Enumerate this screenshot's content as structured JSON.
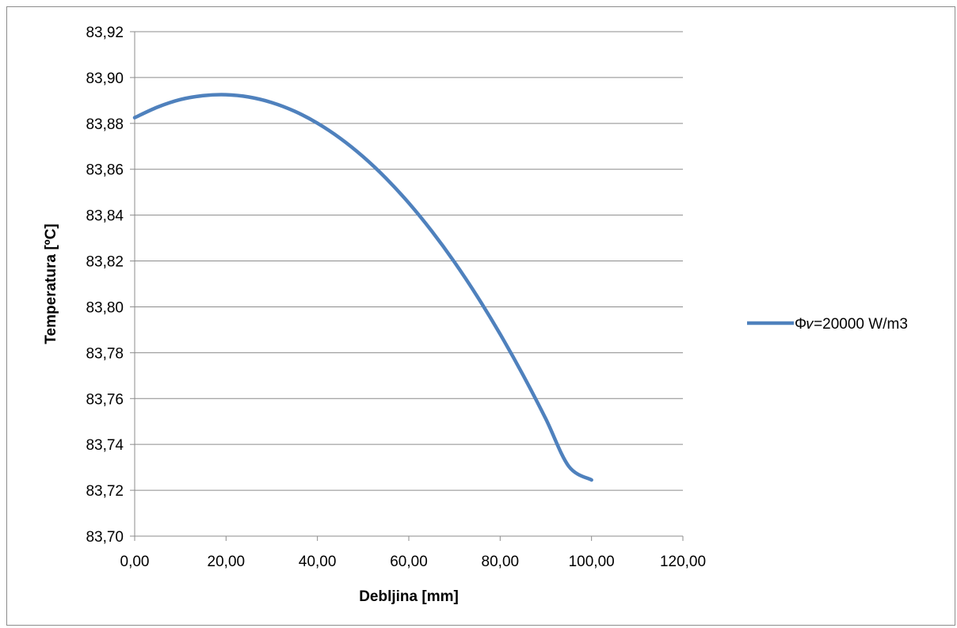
{
  "chart_data": {
    "type": "line",
    "title": "",
    "xlabel": "Debljina [mm]",
    "ylabel": "Temperatura [ºC]",
    "xlim": [
      0,
      120
    ],
    "ylim": [
      83.7,
      83.92
    ],
    "x_ticks": [
      "0,00",
      "20,00",
      "40,00",
      "60,00",
      "80,00",
      "100,00",
      "120,00"
    ],
    "y_ticks": [
      "83,70",
      "83,72",
      "83,74",
      "83,76",
      "83,78",
      "83,80",
      "83,82",
      "83,84",
      "83,86",
      "83,88",
      "83,90",
      "83,92"
    ],
    "grid": "horizontal",
    "legend_position": "right",
    "series": [
      {
        "name": "Φ𝑣=20000 W/m3",
        "color": "#4f81bd",
        "x": [
          0,
          5,
          10,
          15,
          20,
          25,
          30,
          35,
          40,
          45,
          50,
          55,
          60,
          65,
          70,
          75,
          80,
          85,
          90,
          95,
          100
        ],
        "y": [
          83.8825,
          83.8871,
          83.8904,
          83.8921,
          83.8925,
          83.8915,
          83.8891,
          83.8853,
          83.8801,
          83.8735,
          83.8655,
          83.8561,
          83.8453,
          83.8331,
          83.8195,
          83.8045,
          83.7881,
          83.7703,
          83.7511,
          83.7305,
          83.7245
        ]
      }
    ]
  }
}
